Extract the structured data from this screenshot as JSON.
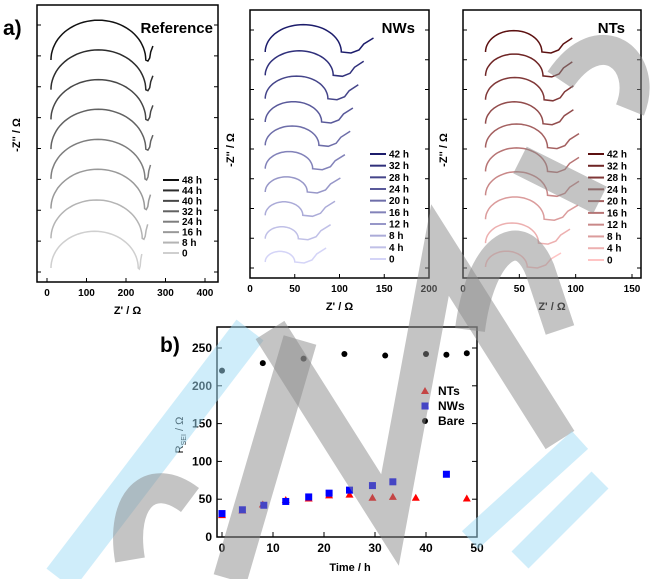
{
  "panel_labels": {
    "a": "a)",
    "b": "b)"
  },
  "watermark": "Accepted Manuscript",
  "chart_data": [
    {
      "type": "line",
      "panel": "a",
      "title": "Reference",
      "xlabel": "Z' / Ω",
      "ylabel": "-Z'' / Ω",
      "xlim": [
        0,
        420
      ],
      "xticks": [
        0,
        100,
        200,
        300,
        400
      ],
      "y_tick_labels": false,
      "legend": "bottom-right",
      "series_note_color_range": [
        "#111111",
        "#cfcfcf"
      ],
      "series": [
        {
          "name": "48 h",
          "start": 10,
          "arc_end": 250,
          "tail_end": 268
        },
        {
          "name": "44 h",
          "start": 10,
          "arc_end": 250,
          "tail_end": 268
        },
        {
          "name": "40 h",
          "start": 10,
          "arc_end": 250,
          "tail_end": 268
        },
        {
          "name": "32 h",
          "start": 10,
          "arc_end": 250,
          "tail_end": 268
        },
        {
          "name": "24 h",
          "start": 10,
          "arc_end": 248,
          "tail_end": 262
        },
        {
          "name": "16 h",
          "start": 10,
          "arc_end": 247,
          "tail_end": 262
        },
        {
          "name": "8 h",
          "start": 10,
          "arc_end": 241,
          "tail_end": 255
        },
        {
          "name": "0",
          "start": 10,
          "arc_end": 231,
          "tail_end": 240
        }
      ]
    },
    {
      "type": "line",
      "panel": "a",
      "title": "NWs",
      "xlabel": "Z' / Ω",
      "ylabel": "-Z'' / Ω",
      "xlim": [
        0,
        200
      ],
      "xticks": [
        0,
        50,
        100,
        150,
        200
      ],
      "y_tick_labels": false,
      "legend": "bottom-right",
      "series_note_color_range": [
        "#1c1c6b",
        "#d4d4f7"
      ],
      "series": [
        {
          "name": "42 h",
          "start": 17,
          "arc_end": 102,
          "tail_end": 138
        },
        {
          "name": "32 h",
          "start": 17,
          "arc_end": 93,
          "tail_end": 127
        },
        {
          "name": "28 h",
          "start": 17,
          "arc_end": 87,
          "tail_end": 121
        },
        {
          "name": "24 h",
          "start": 17,
          "arc_end": 80,
          "tail_end": 115
        },
        {
          "name": "20 h",
          "start": 17,
          "arc_end": 77,
          "tail_end": 112
        },
        {
          "name": "16 h",
          "start": 17,
          "arc_end": 70,
          "tail_end": 106
        },
        {
          "name": "12 h",
          "start": 17,
          "arc_end": 64,
          "tail_end": 101
        },
        {
          "name": "8 h",
          "start": 17,
          "arc_end": 59,
          "tail_end": 95
        },
        {
          "name": "4 h",
          "start": 17,
          "arc_end": 54,
          "tail_end": 90
        },
        {
          "name": "0",
          "start": 17,
          "arc_end": 50,
          "tail_end": 85
        }
      ]
    },
    {
      "type": "line",
      "panel": "a",
      "title": "NTs",
      "xlabel": "Z' / Ω",
      "ylabel": "-Z'' / Ω",
      "xlim": [
        0,
        158
      ],
      "xticks": [
        0,
        50,
        100,
        150
      ],
      "y_tick_labels": false,
      "legend": "bottom-right",
      "series_note_color_range": [
        "#5c1010",
        "#ffc4c4"
      ],
      "series": [
        {
          "name": "42 h",
          "start": 20,
          "arc_end": 70,
          "tail_end": 97
        },
        {
          "name": "32 h",
          "start": 20,
          "arc_end": 71,
          "tail_end": 97
        },
        {
          "name": "28 h",
          "start": 20,
          "arc_end": 72,
          "tail_end": 98
        },
        {
          "name": "24 h",
          "start": 20,
          "arc_end": 71,
          "tail_end": 98
        },
        {
          "name": "20 h",
          "start": 20,
          "arc_end": 75,
          "tail_end": 103
        },
        {
          "name": "16 h",
          "start": 20,
          "arc_end": 75,
          "tail_end": 103
        },
        {
          "name": "12 h",
          "start": 20,
          "arc_end": 75,
          "tail_end": 103
        },
        {
          "name": "8 h",
          "start": 20,
          "arc_end": 72,
          "tail_end": 102
        },
        {
          "name": "4 h",
          "start": 20,
          "arc_end": 67,
          "tail_end": 95
        },
        {
          "name": "0",
          "start": 20,
          "arc_end": 57,
          "tail_end": 87
        }
      ]
    },
    {
      "type": "scatter",
      "panel": "b",
      "xlabel": "Time / h",
      "ylabel": "R_SEI / Ω",
      "ylabel_main": "R",
      "ylabel_sub": "SEI",
      "ylabel_unit": " / Ω",
      "xlim": [
        -1,
        50
      ],
      "ylim": [
        0,
        275
      ],
      "xticks": [
        0,
        10,
        20,
        30,
        40,
        50
      ],
      "yticks": [
        0,
        50,
        100,
        150,
        200,
        250
      ],
      "legend": "right",
      "series": [
        {
          "name": "NTs",
          "marker": "triangle",
          "color": "#ff0000",
          "x": [
            0,
            4,
            8,
            12.5,
            17,
            21,
            25,
            29.5,
            33.5,
            38,
            48
          ],
          "y": [
            29,
            35,
            43,
            49,
            51,
            55,
            56,
            52,
            53,
            52,
            51
          ]
        },
        {
          "name": "NWs",
          "marker": "square",
          "color": "#0000ff",
          "x": [
            0,
            4,
            8.2,
            12.5,
            17,
            21,
            25,
            29.5,
            33.5,
            44
          ],
          "y": [
            31,
            36,
            42,
            47,
            53,
            58,
            62,
            68,
            73,
            83
          ]
        },
        {
          "name": "Bare",
          "marker": "circle",
          "color": "#000000",
          "x": [
            0,
            8,
            16,
            24,
            32,
            40,
            44,
            48
          ],
          "y": [
            220,
            230,
            236,
            242,
            240,
            242,
            241,
            243
          ]
        }
      ]
    }
  ]
}
